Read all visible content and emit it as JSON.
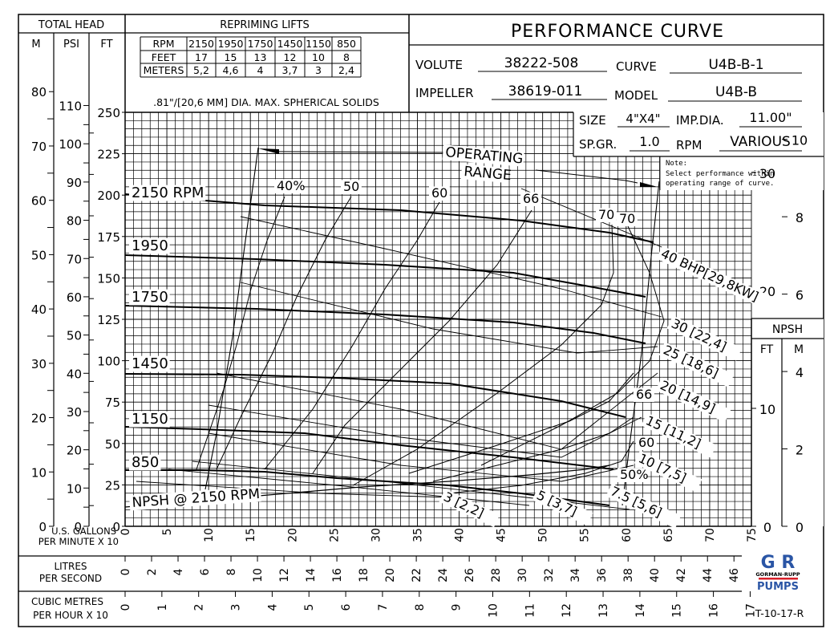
{
  "title": "PERFORMANCE CURVE",
  "total_head": {
    "header": "TOTAL HEAD",
    "columns": [
      "M",
      "PSI",
      "FT"
    ],
    "m_ticks": [
      0,
      10,
      20,
      30,
      40,
      50,
      60,
      70,
      80
    ],
    "psi_ticks": [
      0,
      10,
      20,
      30,
      40,
      50,
      60,
      70,
      80,
      90,
      100,
      110
    ],
    "ft_ticks": [
      0,
      25,
      50,
      75,
      100,
      125,
      150,
      175,
      200,
      225,
      250
    ]
  },
  "repriming_lifts": {
    "title": "REPRIMING LIFTS",
    "rows": [
      {
        "label": "RPM",
        "values": [
          "2150",
          "1950",
          "1750",
          "1450",
          "1150",
          "850"
        ]
      },
      {
        "label": "FEET",
        "values": [
          "17",
          "15",
          "13",
          "12",
          "10",
          "8"
        ]
      },
      {
        "label": "METERS",
        "values": [
          "5,2",
          "4,6",
          "4",
          "3,7",
          "3",
          "2,4"
        ]
      }
    ],
    "solids_note": ".81\"/[20,6 MM] DIA. MAX. SPHERICAL SOLIDS"
  },
  "specs": {
    "volute_label": "VOLUTE",
    "volute": "38222-508",
    "curve_label": "CURVE",
    "curve": "U4B-B-1",
    "impeller_label": "IMPELLER",
    "impeller": "38619-011",
    "model_label": "MODEL",
    "model": "U4B-B",
    "size_label": "SIZE",
    "size": "4\"X4\"",
    "impdia_label": "IMP.DIA.",
    "impdia": "11.00\"",
    "spgr_label": "SP.GR.",
    "spgr": "1.0",
    "rpm_label": "RPM",
    "rpm": "VARIOUS"
  },
  "note": {
    "title": "Note:",
    "line1": "Select performance within",
    "line2": "operating range of curve."
  },
  "npsh_axis": {
    "header": "NPSH",
    "columns": [
      "FT",
      "M"
    ],
    "ft_ticks": [
      0,
      10,
      20,
      30
    ],
    "m_ticks": [
      0,
      2,
      4,
      6,
      8,
      10
    ]
  },
  "x_axes": {
    "gpm_label_1": "U.S. GALLONS",
    "gpm_label_2": "PER MINUTE X 10",
    "gpm_ticks": [
      "0",
      "5",
      "10",
      "15",
      "20",
      "25",
      "30",
      "35",
      "40",
      "45",
      "50",
      "55",
      "60",
      "65",
      "70",
      "75"
    ],
    "lps_label_1": "LITRES",
    "lps_label_2": "PER SECOND",
    "lps_ticks": [
      "0",
      "2",
      "4",
      "6",
      "8",
      "10",
      "12",
      "14",
      "16",
      "18",
      "20",
      "22",
      "24",
      "26",
      "28",
      "30",
      "32",
      "34",
      "36",
      "38",
      "40",
      "42",
      "44",
      "46"
    ],
    "m3h_label_1": "CUBIC METRES",
    "m3h_label_2": "PER HOUR X 10",
    "m3h_ticks": [
      "0",
      "1",
      "2",
      "3",
      "4",
      "5",
      "6",
      "7",
      "8",
      "9",
      "10",
      "11",
      "12",
      "13",
      "14",
      "15",
      "16",
      "17"
    ]
  },
  "curve_labels": {
    "operating_range_1": "OPERATING",
    "operating_range_2": "RANGE",
    "npsh_curve": "NPSH @ 2150 RPM",
    "rpm_2150": "2150 RPM",
    "rpm_1950": "1950",
    "rpm_1750": "1750",
    "rpm_1450": "1450",
    "rpm_1150": "1150",
    "rpm_850": "850",
    "eff_40": "40%",
    "eff_50": "50",
    "eff_60": "60",
    "eff_66": "66",
    "eff_70a": "70",
    "eff_70b": "70",
    "eff_66b": "66",
    "eff_60b": "60",
    "eff_50b": "50%",
    "bhp_40": "40 BHP[29,8KW]",
    "bhp_30": "30 [22,4]",
    "bhp_25": "25 [18,6]",
    "bhp_20": "20 [14,9]",
    "bhp_15": "15 [11,2]",
    "bhp_10": "10 [7,5]",
    "bhp_7_5": "7.5 [5,6]",
    "bhp_5": "5 [3,7]",
    "bhp_3": "3 [2,2]"
  },
  "logo": {
    "mark": "G R",
    "name": "GORMAN-RUPP",
    "pumps": "PUMPS",
    "blue": "#2a55a5",
    "red": "#d8202a"
  },
  "drawing_number": "T-10-17-R",
  "chart_data": {
    "type": "line",
    "title": "PERFORMANCE CURVE",
    "xlabel": "U.S. GALLONS PER MINUTE X 10",
    "ylabel": "TOTAL HEAD (FT)",
    "xlim": [
      0,
      75
    ],
    "ylim": [
      0,
      250
    ],
    "grid": true,
    "series": [
      {
        "name": "2150 RPM",
        "x": [
          0,
          15,
          30,
          45,
          55,
          63,
          65
        ],
        "y": [
          200,
          195,
          190,
          185,
          180,
          175,
          172
        ]
      },
      {
        "name": "1950",
        "x": [
          0,
          15,
          30,
          45,
          55,
          63
        ],
        "y": [
          164,
          160,
          157,
          152,
          147,
          140
        ]
      },
      {
        "name": "1750",
        "x": [
          0,
          15,
          30,
          45,
          55,
          62
        ],
        "y": [
          133,
          130,
          127,
          122,
          117,
          110
        ]
      },
      {
        "name": "1450",
        "x": [
          0,
          15,
          30,
          45,
          55,
          60
        ],
        "y": [
          92,
          90,
          87,
          82,
          76,
          72
        ]
      },
      {
        "name": "1150",
        "x": [
          0,
          15,
          30,
          45,
          55,
          59
        ],
        "y": [
          60,
          58,
          55,
          50,
          43,
          40
        ]
      },
      {
        "name": "850",
        "x": [
          0,
          10,
          20,
          30,
          40,
          50,
          58
        ],
        "y": [
          34,
          33,
          32,
          30,
          26,
          20,
          15
        ]
      },
      {
        "name": "NPSH @ 2150 RPM (ft, right axis)",
        "x": [
          0,
          20,
          40,
          55,
          60,
          63
        ],
        "y": [
          1.5,
          3,
          5,
          8,
          10,
          12
        ]
      }
    ],
    "efficiency_lines_pct": [
      40,
      50,
      60,
      66,
      70,
      70,
      66,
      60,
      50
    ],
    "bhp_lines": [
      {
        "bhp": 40,
        "kw": 29.8
      },
      {
        "bhp": 30,
        "kw": 22.4
      },
      {
        "bhp": 25,
        "kw": 18.6
      },
      {
        "bhp": 20,
        "kw": 14.9
      },
      {
        "bhp": 15,
        "kw": 11.2
      },
      {
        "bhp": 10,
        "kw": 7.5
      },
      {
        "bhp": 7.5,
        "kw": 5.6
      },
      {
        "bhp": 5,
        "kw": 3.7
      },
      {
        "bhp": 3,
        "kw": 2.2
      }
    ],
    "operating_range_gpm_x10": [
      16,
      65
    ]
  }
}
